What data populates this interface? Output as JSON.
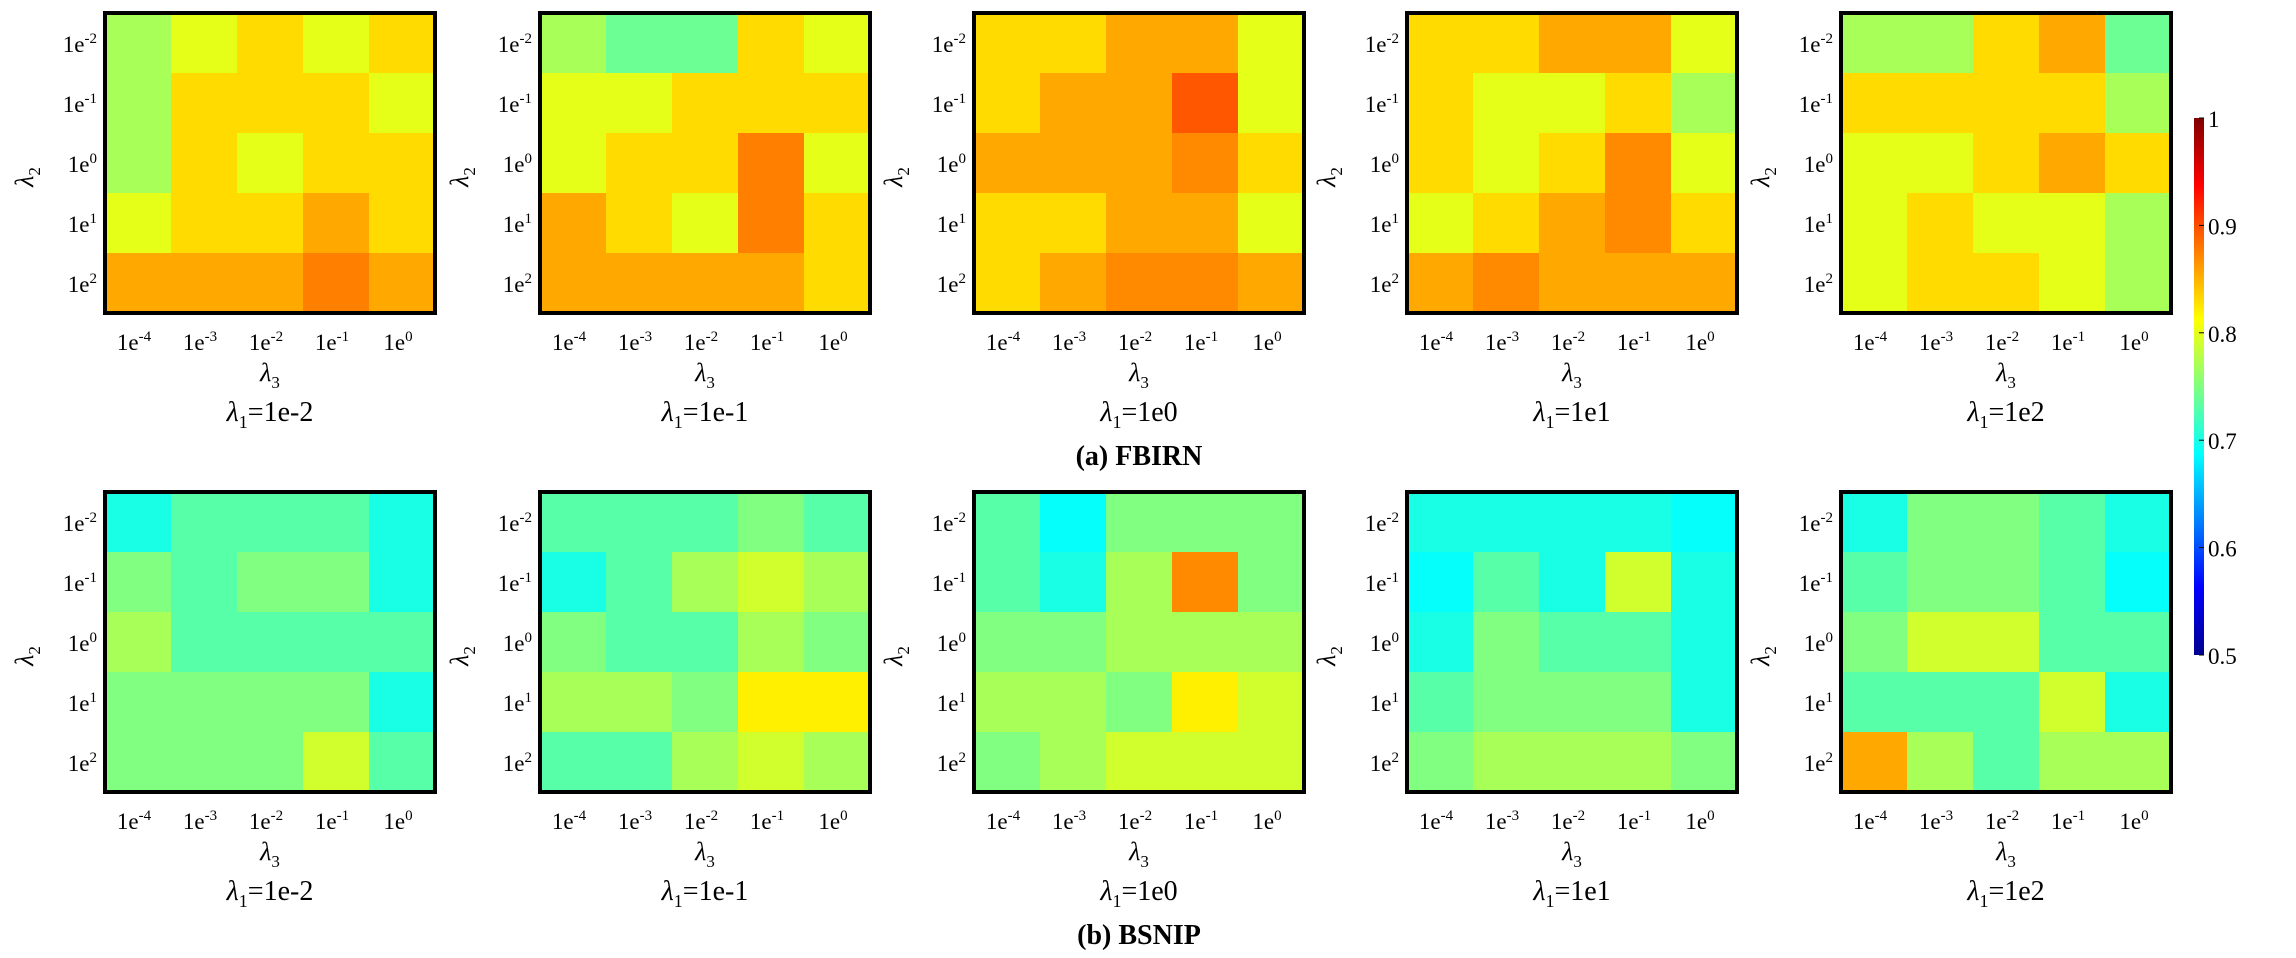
{
  "chart_data": {
    "type": "heatmap",
    "colormap": "jet",
    "colorbar": {
      "min": 0.5,
      "max": 1,
      "ticks": [
        "0.5",
        "0.6",
        "0.7",
        "0.8",
        "0.9",
        "1"
      ]
    },
    "x_tick_labels": [
      [
        "1e",
        "-4"
      ],
      [
        "1e",
        "-3"
      ],
      [
        "1e",
        "-2"
      ],
      [
        "1e",
        "-1"
      ],
      [
        "1e",
        "0"
      ]
    ],
    "y_tick_labels": [
      [
        "1e",
        "-2"
      ],
      [
        "1e",
        "-1"
      ],
      [
        "1e",
        "0"
      ],
      [
        "1e",
        "1"
      ],
      [
        "1e",
        "2"
      ]
    ],
    "xlabel": {
      "sym": "λ",
      "sub": "3"
    },
    "ylabel": {
      "sym": "λ",
      "sub": "2"
    },
    "groups": [
      {
        "caption": "(a) FBIRN",
        "panels": [
          {
            "label_sym": "λ",
            "label_sub": "1",
            "label_rest": "=1e-2",
            "values": [
              [
                0.77,
                0.8,
                0.83,
                0.8,
                0.83
              ],
              [
                0.77,
                0.83,
                0.83,
                0.83,
                0.8
              ],
              [
                0.77,
                0.83,
                0.8,
                0.83,
                0.83
              ],
              [
                0.8,
                0.83,
                0.83,
                0.855,
                0.83
              ],
              [
                0.855,
                0.855,
                0.855,
                0.875,
                0.855
              ]
            ]
          },
          {
            "label_sym": "λ",
            "label_sub": "1",
            "label_rest": "=1e-1",
            "values": [
              [
                0.77,
                0.74,
                0.74,
                0.83,
                0.8
              ],
              [
                0.8,
                0.8,
                0.83,
                0.83,
                0.83
              ],
              [
                0.8,
                0.83,
                0.83,
                0.875,
                0.8
              ],
              [
                0.855,
                0.83,
                0.8,
                0.875,
                0.83
              ],
              [
                0.855,
                0.855,
                0.855,
                0.855,
                0.83
              ]
            ]
          },
          {
            "label_sym": "λ",
            "label_sub": "1",
            "label_rest": "=1e0",
            "values": [
              [
                0.83,
                0.83,
                0.855,
                0.855,
                0.8
              ],
              [
                0.83,
                0.855,
                0.855,
                0.895,
                0.8
              ],
              [
                0.855,
                0.855,
                0.855,
                0.87,
                0.83
              ],
              [
                0.83,
                0.83,
                0.855,
                0.855,
                0.8
              ],
              [
                0.83,
                0.855,
                0.87,
                0.87,
                0.855
              ]
            ]
          },
          {
            "label_sym": "λ",
            "label_sub": "1",
            "label_rest": "=1e1",
            "values": [
              [
                0.83,
                0.83,
                0.855,
                0.855,
                0.8
              ],
              [
                0.83,
                0.8,
                0.8,
                0.83,
                0.77
              ],
              [
                0.83,
                0.8,
                0.83,
                0.87,
                0.8
              ],
              [
                0.8,
                0.83,
                0.855,
                0.87,
                0.83
              ],
              [
                0.855,
                0.87,
                0.855,
                0.855,
                0.855
              ]
            ]
          },
          {
            "label_sym": "λ",
            "label_sub": "1",
            "label_rest": "=1e2",
            "values": [
              [
                0.77,
                0.77,
                0.83,
                0.855,
                0.74
              ],
              [
                0.83,
                0.83,
                0.83,
                0.83,
                0.77
              ],
              [
                0.8,
                0.8,
                0.83,
                0.855,
                0.83
              ],
              [
                0.8,
                0.83,
                0.8,
                0.8,
                0.77
              ],
              [
                0.8,
                0.83,
                0.83,
                0.8,
                0.77
              ]
            ]
          }
        ]
      },
      {
        "caption": "(b) BSNIP",
        "panels": [
          {
            "label_sym": "λ",
            "label_sub": "1",
            "label_rest": "=1e-2",
            "values": [
              [
                0.7,
                0.73,
                0.73,
                0.73,
                0.7
              ],
              [
                0.75,
                0.73,
                0.75,
                0.75,
                0.7
              ],
              [
                0.77,
                0.73,
                0.73,
                0.73,
                0.73
              ],
              [
                0.75,
                0.75,
                0.75,
                0.75,
                0.7
              ],
              [
                0.75,
                0.75,
                0.75,
                0.79,
                0.73
              ]
            ]
          },
          {
            "label_sym": "λ",
            "label_sub": "1",
            "label_rest": "=1e-1",
            "values": [
              [
                0.73,
                0.73,
                0.73,
                0.75,
                0.73
              ],
              [
                0.7,
                0.73,
                0.77,
                0.79,
                0.77
              ],
              [
                0.75,
                0.73,
                0.73,
                0.77,
                0.75
              ],
              [
                0.77,
                0.77,
                0.75,
                0.82,
                0.82
              ],
              [
                0.73,
                0.73,
                0.77,
                0.79,
                0.77
              ]
            ]
          },
          {
            "label_sym": "λ",
            "label_sub": "1",
            "label_rest": "=1e0",
            "values": [
              [
                0.73,
                0.69,
                0.75,
                0.75,
                0.75
              ],
              [
                0.73,
                0.7,
                0.77,
                0.87,
                0.75
              ],
              [
                0.75,
                0.75,
                0.77,
                0.77,
                0.77
              ],
              [
                0.77,
                0.77,
                0.75,
                0.82,
                0.79
              ],
              [
                0.75,
                0.77,
                0.79,
                0.79,
                0.79
              ]
            ]
          },
          {
            "label_sym": "λ",
            "label_sub": "1",
            "label_rest": "=1e1",
            "values": [
              [
                0.7,
                0.7,
                0.7,
                0.7,
                0.69
              ],
              [
                0.69,
                0.73,
                0.7,
                0.79,
                0.7
              ],
              [
                0.7,
                0.75,
                0.73,
                0.73,
                0.7
              ],
              [
                0.73,
                0.75,
                0.75,
                0.75,
                0.7
              ],
              [
                0.75,
                0.77,
                0.77,
                0.77,
                0.75
              ]
            ]
          },
          {
            "label_sym": "λ",
            "label_sub": "1",
            "label_rest": "=1e2",
            "values": [
              [
                0.7,
                0.75,
                0.75,
                0.73,
                0.7
              ],
              [
                0.73,
                0.75,
                0.75,
                0.73,
                0.69
              ],
              [
                0.75,
                0.79,
                0.79,
                0.73,
                0.73
              ],
              [
                0.73,
                0.73,
                0.73,
                0.79,
                0.7
              ],
              [
                0.855,
                0.77,
                0.73,
                0.77,
                0.77
              ]
            ]
          }
        ]
      }
    ]
  }
}
